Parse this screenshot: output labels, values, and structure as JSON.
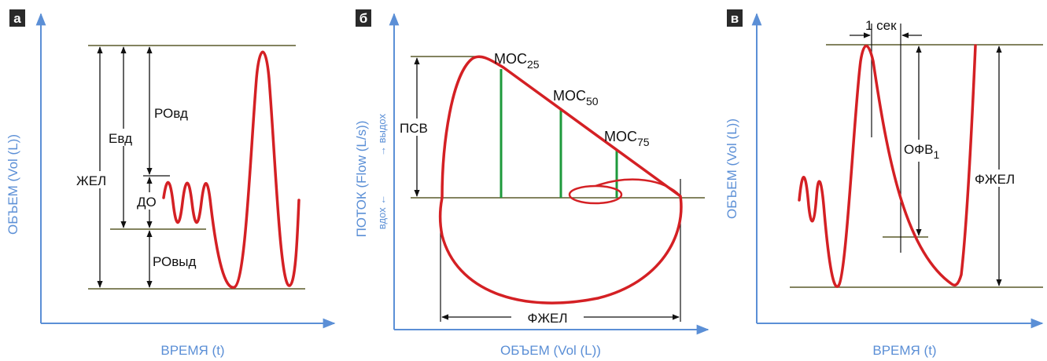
{
  "colors": {
    "axis": "#5b8fd6",
    "curve": "#d42024",
    "green": "#1e9a3c",
    "ref_line": "#5a5a2a",
    "text": "#111111",
    "label_bg": "#2a2a2a"
  },
  "panels": {
    "a": {
      "letter": "а",
      "ylabel": "ОБЪЕМ (Vol (L))",
      "xlabel": "ВРЕМЯ (t)",
      "labels": {
        "rovd": "РОвд",
        "evd": "Евд",
        "zhel": "ЖЕЛ",
        "do": "ДО",
        "rovyd": "РОвыд"
      }
    },
    "b": {
      "letter": "б",
      "ylabel": "ПОТОК (Flow (L/s))",
      "ylabel_up": "→ выдох",
      "ylabel_down": "вдох ←",
      "xlabel": "ОБЪЕМ (Vol (L))",
      "labels": {
        "mos25": "МОС",
        "mos25_sub": "25",
        "mos50": "МОС",
        "mos50_sub": "50",
        "mos75": "МОС",
        "mos75_sub": "75",
        "psv": "ПСВ",
        "fzhel": "ФЖЕЛ"
      }
    },
    "c": {
      "letter": "в",
      "ylabel": "ОБЪЕМ (Vol (L))",
      "xlabel": "ВРЕМЯ (t)",
      "labels": {
        "sec": "1 сек",
        "ofv": "ОФВ",
        "ofv_sub": "1",
        "fzhel": "ФЖЕЛ"
      }
    }
  }
}
